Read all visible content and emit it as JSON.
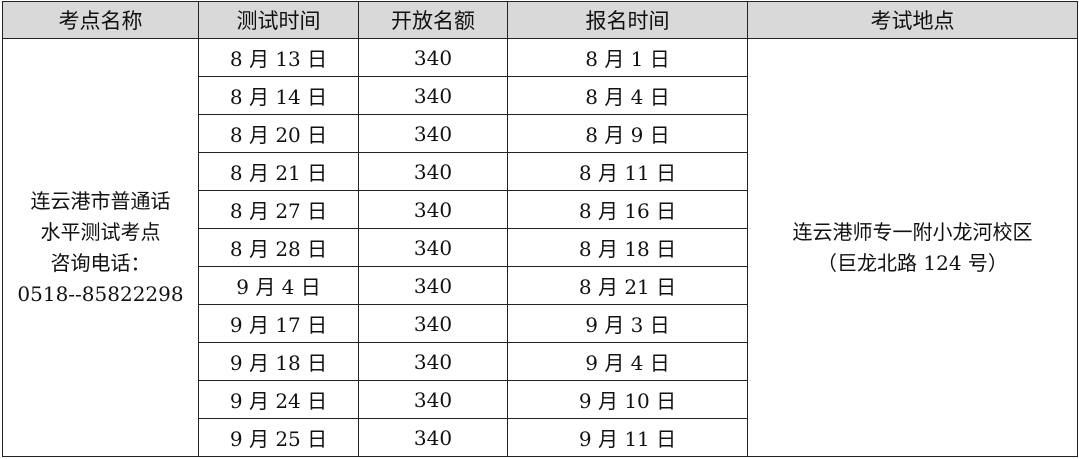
{
  "headers": [
    "考点名称",
    "测试时间",
    "开放名额",
    "报名时间",
    "考试地点"
  ],
  "site_name_lines": [
    "连云港市普通话",
    "水平测试考点",
    "咨询电话：",
    "0518--85822298"
  ],
  "location_lines": [
    "连云港师专一附小龙河校区",
    "（巨龙北路 124 号）"
  ],
  "rows": [
    {
      "test_date": "8 月 13 日",
      "quota": "340",
      "register_date": "8 月 1 日"
    },
    {
      "test_date": "8 月 14 日",
      "quota": "340",
      "register_date": "8 月 4 日"
    },
    {
      "test_date": "8 月 20 日",
      "quota": "340",
      "register_date": "8 月 9 日"
    },
    {
      "test_date": "8 月 21 日",
      "quota": "340",
      "register_date": "8 月 11 日"
    },
    {
      "test_date": "8 月 27 日",
      "quota": "340",
      "register_date": "8 月 16 日"
    },
    {
      "test_date": "8 月 28 日",
      "quota": "340",
      "register_date": "8 月 18 日"
    },
    {
      "test_date": "9 月 4 日",
      "quota": "340",
      "register_date": "8 月 21 日"
    },
    {
      "test_date": "9 月 17 日",
      "quota": "340",
      "register_date": "9 月 3 日"
    },
    {
      "test_date": "9 月 18 日",
      "quota": "340",
      "register_date": "9 月 4 日"
    },
    {
      "test_date": "9 月 24 日",
      "quota": "340",
      "register_date": "9 月 10 日"
    },
    {
      "test_date": "9 月 25 日",
      "quota": "340",
      "register_date": "9 月 11 日"
    }
  ]
}
